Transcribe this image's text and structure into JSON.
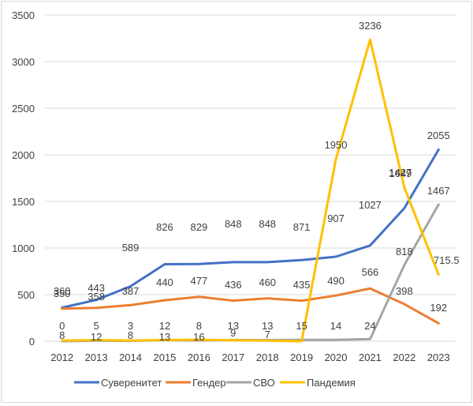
{
  "chart_data": {
    "type": "line",
    "title": "",
    "xlabel": "",
    "ylabel": "",
    "categories": [
      "2012",
      "2013",
      "2014",
      "2015",
      "2016",
      "2017",
      "2018",
      "2019",
      "2020",
      "2021",
      "2022",
      "2023"
    ],
    "ylim": [
      0,
      3500
    ],
    "yticks": [
      0,
      500,
      1000,
      1500,
      2000,
      2500,
      3000,
      3500
    ],
    "grid": true,
    "legend_position": "bottom",
    "series": [
      {
        "name": "Суверенитет",
        "color": "#4472C4",
        "values": [
          360,
          443,
          589,
          826,
          829,
          848,
          848,
          871,
          907,
          1027,
          1427,
          2055
        ],
        "labels": [
          "360",
          "443",
          "589",
          "826",
          "829",
          "848",
          "848",
          "871",
          "907",
          "1027",
          "1427",
          "2055"
        ]
      },
      {
        "name": "Гендер",
        "color": "#ED7D31",
        "values": [
          350,
          358,
          387,
          440,
          477,
          436,
          460,
          435,
          490,
          566,
          398,
          192
        ],
        "labels": [
          "350",
          "358",
          "387",
          "440",
          "477",
          "436",
          "460",
          "435",
          "490",
          "566",
          "398",
          "192"
        ]
      },
      {
        "name": "СВО",
        "color": "#A5A5A5",
        "values": [
          0,
          5,
          3,
          12,
          8,
          13,
          13,
          15,
          14,
          24,
          818,
          1467
        ],
        "labels": [
          "0",
          "5",
          "3",
          "12",
          "8",
          "13",
          "13",
          "15",
          "14",
          "24",
          "818",
          "1467"
        ]
      },
      {
        "name": "Пандемия",
        "color": "#FFC000",
        "values": [
          8,
          12,
          8,
          13,
          16,
          9,
          7,
          0,
          1950,
          3236,
          1649,
          715.5
        ],
        "labels": [
          "8",
          "12",
          "8",
          "13",
          "16",
          "9",
          "7",
          "",
          "1950",
          "3236",
          "1649",
          "715.5"
        ]
      }
    ]
  }
}
